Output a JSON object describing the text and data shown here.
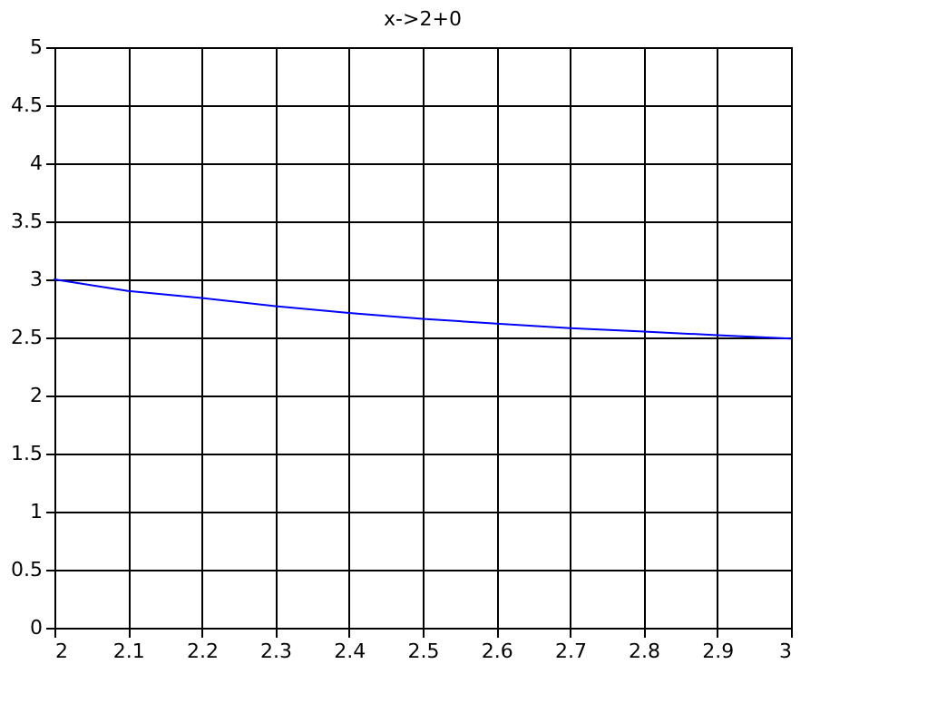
{
  "chart_data": {
    "type": "line",
    "title": "x->2+0",
    "x": [
      2,
      2.1,
      2.2,
      2.3,
      2.4,
      2.5,
      2.6,
      2.7,
      2.8,
      2.9,
      3
    ],
    "series": [
      {
        "color": "#0000ff",
        "values": [
          3.0,
          2.9,
          2.84,
          2.77,
          2.71,
          2.66,
          2.62,
          2.58,
          2.55,
          2.52,
          2.49
        ]
      }
    ],
    "xlim": [
      2,
      3
    ],
    "xticks": [
      2,
      2.1,
      2.2,
      2.3,
      2.4,
      2.5,
      2.6,
      2.7,
      2.8,
      2.9,
      3
    ],
    "ylim": [
      0,
      5
    ],
    "yticks": [
      0,
      0.5,
      1,
      1.5,
      2,
      2.5,
      3,
      3.5,
      4,
      4.5,
      5
    ],
    "grid": true,
    "legend": false,
    "marker": "none",
    "line_style": "solid"
  }
}
